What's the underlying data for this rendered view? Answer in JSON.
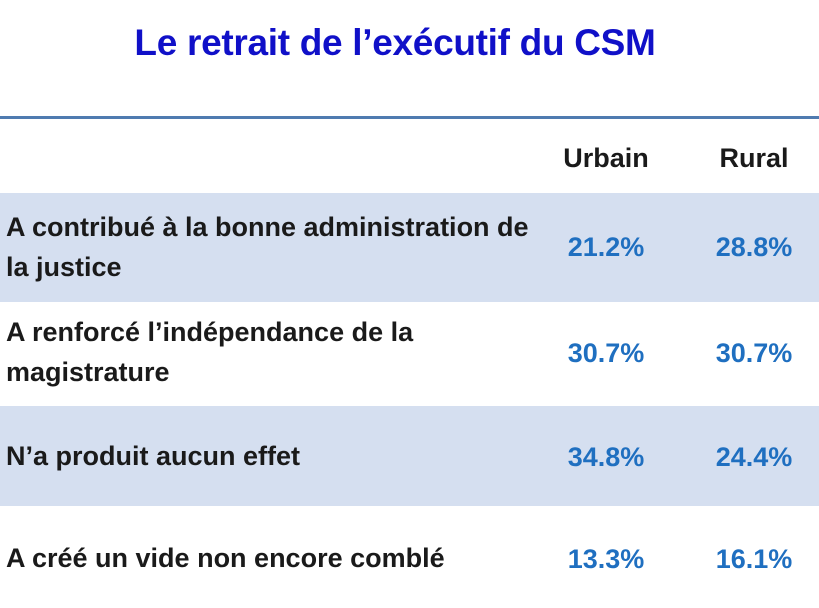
{
  "chart_data": {
    "type": "table",
    "title": "Le retrait de l’exécutif du CSM",
    "columns": [
      "Urbain",
      "Rural"
    ],
    "rows": [
      {
        "label": "A contribué à la bonne administration de la justice",
        "values": [
          "21.2%",
          "28.8%"
        ]
      },
      {
        "label": "A renforcé l’indépendance de la magistrature",
        "values": [
          "30.7%",
          "30.7%"
        ]
      },
      {
        "label": "N’a produit aucun effet",
        "values": [
          "34.8%",
          "24.4%"
        ]
      },
      {
        "label": "A créé un vide non encore comblé",
        "values": [
          "13.3%",
          "16.1%"
        ]
      }
    ]
  },
  "colors": {
    "title": "#1010c8",
    "rule": "#4f7bb0",
    "band": "#d5dff0",
    "value": "#1f6fc0"
  }
}
